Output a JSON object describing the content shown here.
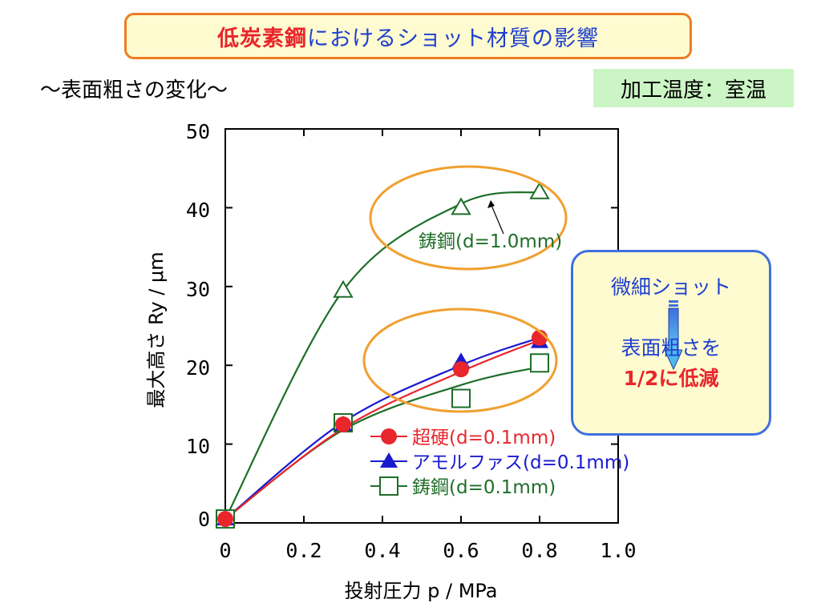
{
  "header": {
    "title_part1": "低炭素鋼",
    "title_part2": "におけるショット材質の影響",
    "subtitle": "～表面粗さの変化～",
    "condition": "加工温度：室温"
  },
  "note": {
    "line1": "微細ショット",
    "line2": "表面粗さを",
    "line3": "1/2に低減"
  },
  "colors": {
    "title_red": "#e8262c",
    "title_blue": "#1f3fd0",
    "green": "#1e6e28",
    "red": "#e8262c",
    "blue": "#1a1ad0",
    "orange": "#f0a030"
  },
  "chart_data": {
    "type": "line",
    "xlabel": "投射圧力 p / MPa",
    "ylabel": "最大高さ Ry / μm",
    "xlim": [
      0,
      1.0
    ],
    "ylim": [
      0,
      50
    ],
    "xticks": [
      "0",
      "0.2",
      "0.4",
      "0.6",
      "0.8",
      "1.0"
    ],
    "yticks": [
      "0",
      "10",
      "20",
      "30",
      "40",
      "50"
    ],
    "grid": false,
    "legend_placement": "bottom-right",
    "series": [
      {
        "name": "超硬(d=0.1mm)",
        "marker": "circle-filled",
        "color": "#e8262c",
        "x": [
          0,
          0.3,
          0.6,
          0.8
        ],
        "y": [
          0.5,
          12.5,
          19.5,
          23.5
        ],
        "curve_y": [
          0.5,
          12.0,
          19.2,
          23.2
        ]
      },
      {
        "name": "アモルファス(d=0.1mm)",
        "marker": "triangle-filled",
        "color": "#1a1ad0",
        "x": [
          0,
          0.3,
          0.6,
          0.8
        ],
        "y": [
          0.5,
          12.5,
          20.5,
          23.0
        ],
        "curve_y": [
          0.5,
          12.8,
          20.0,
          23.5
        ]
      },
      {
        "name": "鋳鋼(d=0.1mm)",
        "marker": "square-open",
        "color": "#1e6e28",
        "x": [
          0,
          0.3,
          0.6,
          0.8
        ],
        "y": [
          0.5,
          12.7,
          15.8,
          20.3
        ],
        "curve_y": [
          0.5,
          11.8,
          17.5,
          19.8
        ]
      },
      {
        "name": "鋳鋼(d=1.0mm)",
        "marker": "triangle-open",
        "color": "#1e6e28",
        "x": [
          0,
          0.3,
          0.6,
          0.8
        ],
        "y": [
          0.5,
          29.5,
          40.0,
          42.0
        ],
        "curve_y": [
          0.5,
          29.5,
          40.5,
          42.0
        ]
      }
    ],
    "annotation": "鋳鋼(d=1.0mm)"
  }
}
